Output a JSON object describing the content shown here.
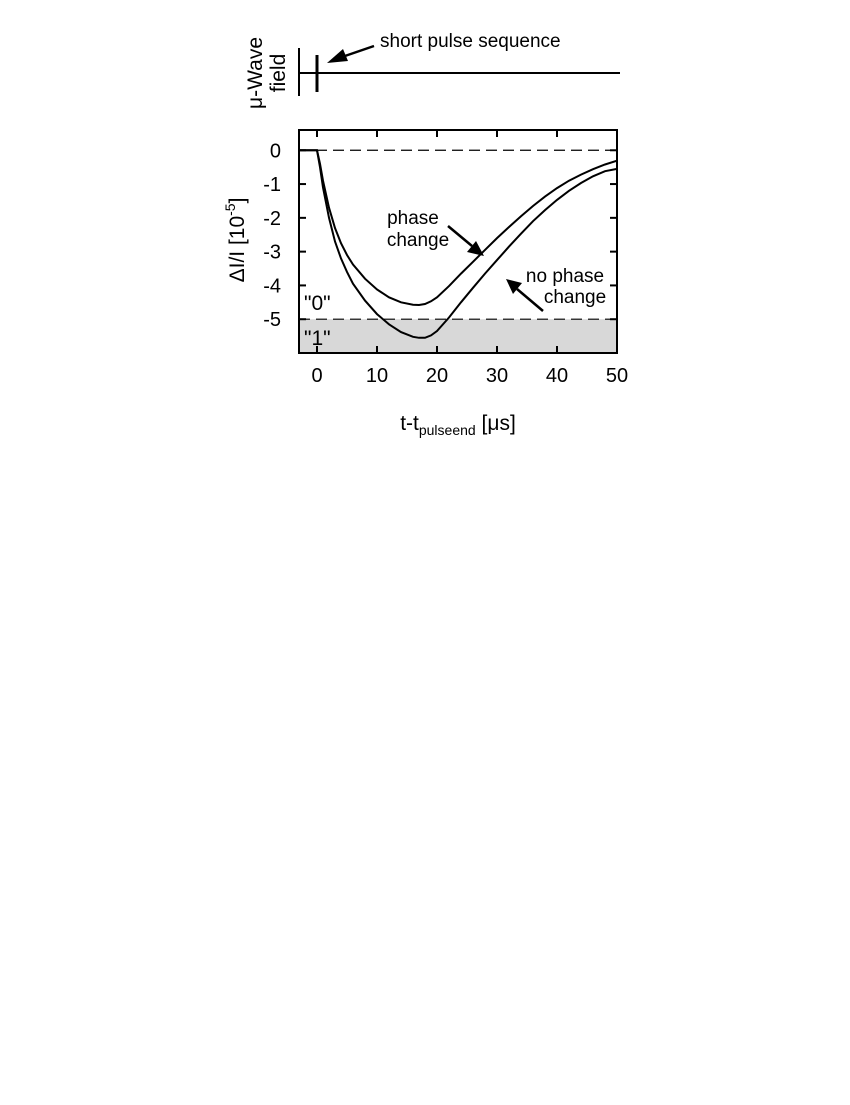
{
  "chart_data": {
    "type": "line",
    "x_label_main": "t-t",
    "x_label_sub": "pulseend",
    "x_label_unit": " [μs]",
    "y_label_main": "ΔI/I  [10",
    "y_label_sup": "-5",
    "y_label_end": "]",
    "xlim": [
      -3,
      50
    ],
    "ylim": [
      -6,
      0.6
    ],
    "x_ticks": [
      0,
      10,
      20,
      30,
      40,
      50
    ],
    "x_tick_labels": [
      "0",
      "10",
      "20",
      "30",
      "40",
      "50"
    ],
    "y_ticks": [
      0,
      -1,
      -2,
      -3,
      -4,
      -5
    ],
    "y_tick_labels": [
      "0",
      "-1",
      "-2",
      "-3",
      "-4",
      "-5"
    ],
    "grid": false,
    "threshold": -5,
    "threshold_fill_color": "#d8d8d8",
    "state_labels": [
      "\"0\"",
      "\"1\""
    ],
    "series": [
      {
        "x": [
          -3,
          0,
          0.5,
          1,
          2,
          3,
          4,
          5,
          6,
          8,
          10,
          12,
          14,
          16,
          17,
          18,
          19,
          20,
          22,
          24,
          26,
          28,
          30,
          32,
          34,
          36,
          38,
          40,
          42,
          44,
          46,
          48,
          50
        ],
        "y": [
          0,
          0,
          -0.4,
          -0.9,
          -1.7,
          -2.3,
          -2.75,
          -3.1,
          -3.38,
          -3.8,
          -4.12,
          -4.35,
          -4.5,
          -4.57,
          -4.58,
          -4.55,
          -4.47,
          -4.35,
          -4.02,
          -3.65,
          -3.3,
          -2.95,
          -2.6,
          -2.27,
          -1.95,
          -1.65,
          -1.37,
          -1.12,
          -0.9,
          -0.72,
          -0.56,
          -0.42,
          -0.31
        ]
      },
      {
        "x": [
          -3,
          0,
          0.5,
          1,
          2,
          3,
          4,
          5,
          6,
          8,
          10,
          12,
          14,
          16,
          17,
          18,
          19,
          20,
          22,
          24,
          26,
          28,
          30,
          32,
          34,
          36,
          38,
          40,
          42,
          44,
          46,
          48,
          50
        ],
        "y": [
          0,
          0,
          -0.5,
          -1.1,
          -2.0,
          -2.7,
          -3.2,
          -3.6,
          -3.95,
          -4.45,
          -4.85,
          -5.15,
          -5.38,
          -5.52,
          -5.55,
          -5.55,
          -5.48,
          -5.35,
          -4.95,
          -4.5,
          -4.07,
          -3.65,
          -3.25,
          -2.85,
          -2.47,
          -2.1,
          -1.77,
          -1.47,
          -1.2,
          -0.97,
          -0.77,
          -0.62,
          -0.55
        ]
      }
    ],
    "annotations": {
      "phase_change": [
        "phase",
        "change"
      ],
      "no_phase_change": [
        "no phase",
        "change"
      ]
    }
  },
  "pulse_panel": {
    "y_label_line1": "μ-Wave",
    "y_label_line2": "field",
    "annotation": "short pulse sequence"
  }
}
